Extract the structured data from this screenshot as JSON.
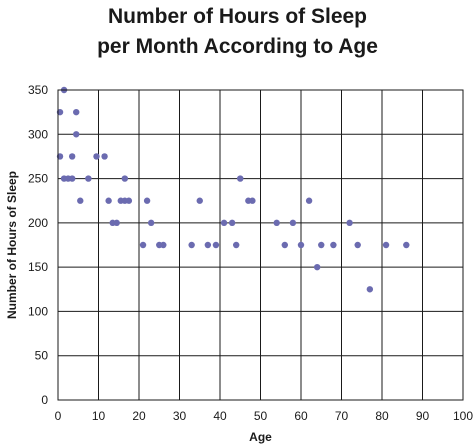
{
  "chart_data": {
    "type": "scatter",
    "title_lines": [
      "Number of Hours of Sleep",
      "per Month According to Age"
    ],
    "xlabel": "Age",
    "ylabel": "Number of Hours of Sleep",
    "xlim": [
      0,
      100
    ],
    "ylim": [
      0,
      350
    ],
    "x_ticks": [
      0,
      10,
      20,
      30,
      40,
      50,
      60,
      70,
      80,
      90,
      100
    ],
    "y_ticks": [
      0,
      50,
      100,
      150,
      200,
      250,
      300,
      350
    ],
    "grid": true,
    "marker_color": "#6b6bb0",
    "points": [
      {
        "x": 0.5,
        "y": 325
      },
      {
        "x": 0.5,
        "y": 275
      },
      {
        "x": 1.5,
        "y": 350
      },
      {
        "x": 1.5,
        "y": 250
      },
      {
        "x": 2.5,
        "y": 250
      },
      {
        "x": 3.5,
        "y": 275
      },
      {
        "x": 3.5,
        "y": 250
      },
      {
        "x": 4.5,
        "y": 325
      },
      {
        "x": 4.5,
        "y": 300
      },
      {
        "x": 5.5,
        "y": 225
      },
      {
        "x": 7.5,
        "y": 250
      },
      {
        "x": 9.5,
        "y": 275
      },
      {
        "x": 11.5,
        "y": 275
      },
      {
        "x": 12.5,
        "y": 225
      },
      {
        "x": 13.5,
        "y": 200
      },
      {
        "x": 14.5,
        "y": 200
      },
      {
        "x": 15.5,
        "y": 225
      },
      {
        "x": 16.5,
        "y": 250
      },
      {
        "x": 16.5,
        "y": 225
      },
      {
        "x": 17.5,
        "y": 225
      },
      {
        "x": 21,
        "y": 175
      },
      {
        "x": 22,
        "y": 225
      },
      {
        "x": 23,
        "y": 200
      },
      {
        "x": 25,
        "y": 175
      },
      {
        "x": 26,
        "y": 175
      },
      {
        "x": 33,
        "y": 175
      },
      {
        "x": 35,
        "y": 225
      },
      {
        "x": 37,
        "y": 175
      },
      {
        "x": 39,
        "y": 175
      },
      {
        "x": 41,
        "y": 200
      },
      {
        "x": 43,
        "y": 200
      },
      {
        "x": 44,
        "y": 175
      },
      {
        "x": 45,
        "y": 250
      },
      {
        "x": 47,
        "y": 225
      },
      {
        "x": 48,
        "y": 225
      },
      {
        "x": 54,
        "y": 200
      },
      {
        "x": 56,
        "y": 175
      },
      {
        "x": 58,
        "y": 200
      },
      {
        "x": 60,
        "y": 175
      },
      {
        "x": 62,
        "y": 225
      },
      {
        "x": 64,
        "y": 150
      },
      {
        "x": 65,
        "y": 175
      },
      {
        "x": 68,
        "y": 175
      },
      {
        "x": 72,
        "y": 200
      },
      {
        "x": 74,
        "y": 175
      },
      {
        "x": 77,
        "y": 125
      },
      {
        "x": 81,
        "y": 175
      },
      {
        "x": 86,
        "y": 175
      }
    ]
  }
}
